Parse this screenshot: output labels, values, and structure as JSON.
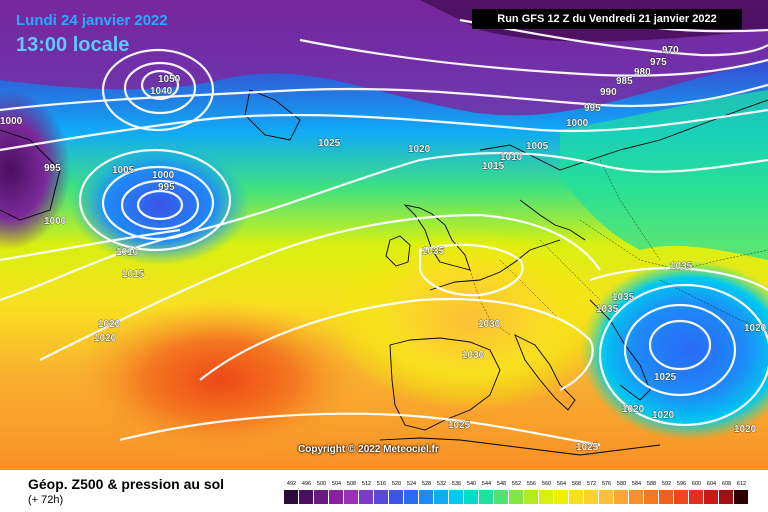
{
  "header": {
    "date_label": "Lundi 24 janvier 2022",
    "time_label": "13:00 locale",
    "run_label": "Run GFS 12 Z du Vendredi 21 janvier 2022"
  },
  "copyright": "Copyright © 2022 Meteociel.fr",
  "footer": {
    "title": "Géop. Z500 & pression au sol",
    "step": "(+ 72h)"
  },
  "legend": {
    "values": [
      "492",
      "496",
      "500",
      "504",
      "508",
      "512",
      "516",
      "520",
      "524",
      "528",
      "532",
      "536",
      "540",
      "544",
      "548",
      "552",
      "556",
      "560",
      "564",
      "568",
      "572",
      "576",
      "580",
      "584",
      "588",
      "592",
      "596",
      "600",
      "604",
      "608",
      "612"
    ],
    "colors": [
      "#2d0a3a",
      "#4a0f5e",
      "#6a1a80",
      "#8a22a0",
      "#9b30b8",
      "#7a3cc8",
      "#5a48d8",
      "#3a55e8",
      "#2a6af5",
      "#1e8af8",
      "#10aaf5",
      "#00c8f0",
      "#00dcc8",
      "#20e0a0",
      "#50e470",
      "#80e840",
      "#b0ec20",
      "#d8f010",
      "#f0f000",
      "#f8e020",
      "#fcd030",
      "#fcc038",
      "#f8a830",
      "#f89028",
      "#f47820",
      "#f06018",
      "#ec4818",
      "#e03020",
      "#c81818",
      "#a01010",
      "#300000"
    ]
  },
  "isobars": [
    {
      "value": "1050",
      "color": "#ffffff"
    },
    {
      "value": "1040",
      "color": "#ffffff"
    },
    {
      "value": "1035",
      "color": "#ffffff"
    },
    {
      "value": "1030",
      "color": "#ffffff"
    },
    {
      "value": "1025",
      "color": "#ffffff"
    },
    {
      "value": "1020",
      "color": "#ffffff"
    },
    {
      "value": "1015",
      "color": "#ffffff"
    },
    {
      "value": "1010",
      "color": "#ffffff"
    },
    {
      "value": "1005",
      "color": "#ffffff"
    },
    {
      "value": "1000",
      "color": "#ffffff"
    },
    {
      "value": "995",
      "color": "#ffffff"
    },
    {
      "value": "990",
      "color": "#ffffff"
    },
    {
      "value": "985",
      "color": "#ffffff"
    },
    {
      "value": "980",
      "color": "#ffffff"
    },
    {
      "value": "975",
      "color": "#ffffff"
    },
    {
      "value": "970",
      "color": "#ffffff"
    }
  ]
}
